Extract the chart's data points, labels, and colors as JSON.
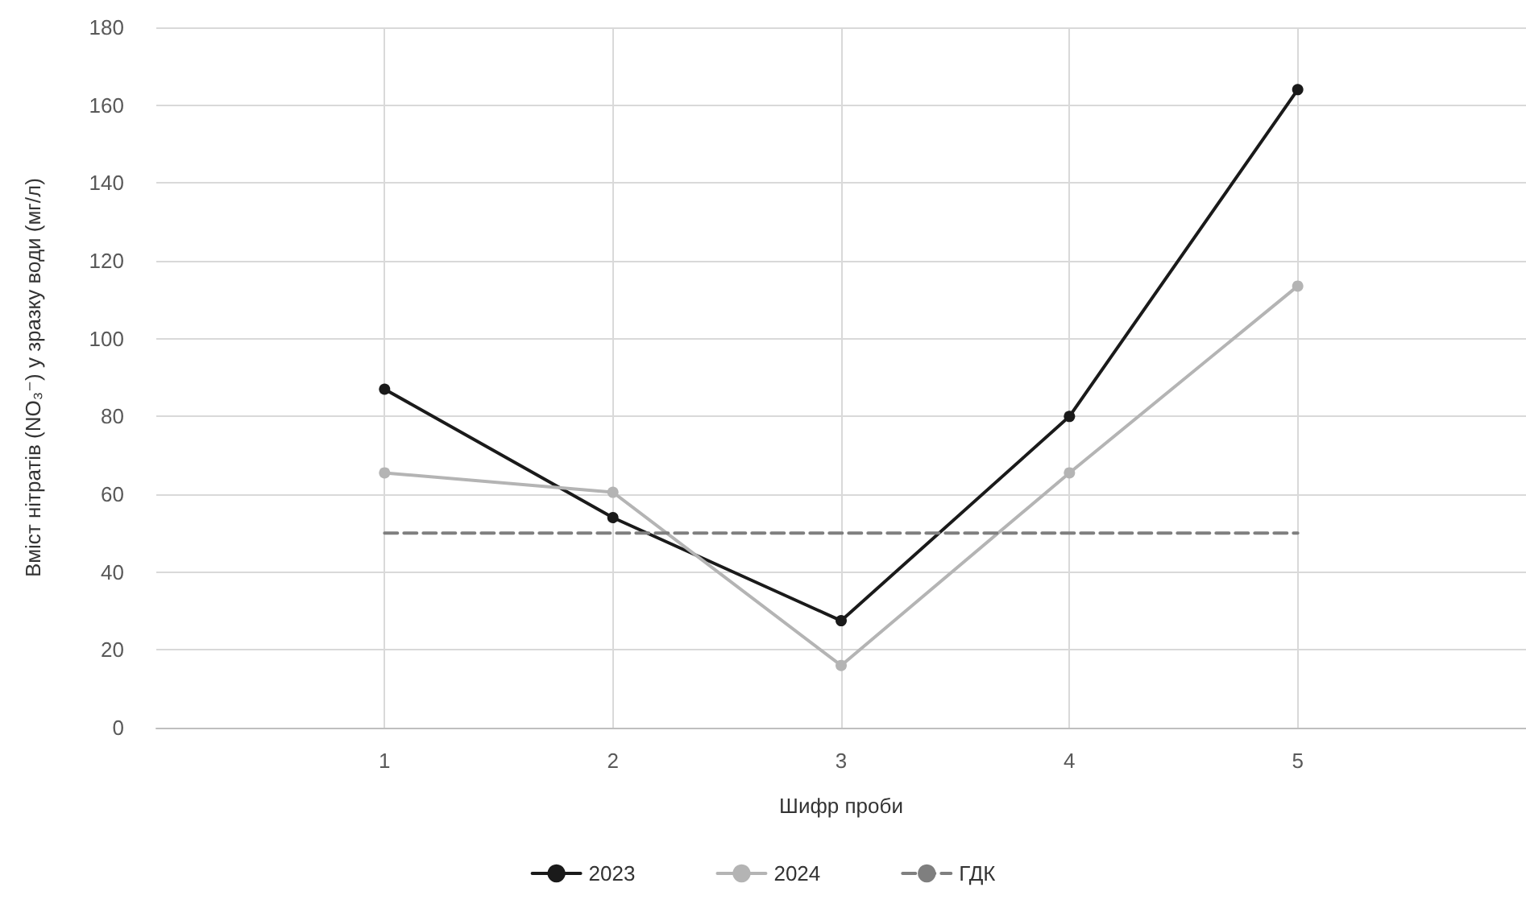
{
  "chart_data": {
    "type": "line",
    "xlabel": "Шифр проби",
    "ylabel": "Вміст нітратів (NO₃⁻) у зразку води (мг/л)",
    "x": [
      1,
      2,
      3,
      4,
      5
    ],
    "series": [
      {
        "name": "2023",
        "color": "#1a1a1a",
        "values": [
          87,
          54,
          27.5,
          80,
          164
        ],
        "marker": "circle",
        "line_style": "solid"
      },
      {
        "name": "2024",
        "color": "#b4b4b4",
        "values": [
          65.5,
          60.5,
          16,
          65.5,
          113.5
        ],
        "marker": "circle",
        "line_style": "solid"
      },
      {
        "name": "ГДК",
        "color": "#7f7f7f",
        "values": [
          50,
          50,
          50,
          50,
          50
        ],
        "marker": "none",
        "line_style": "dashed"
      }
    ],
    "xlim": [
      0,
      6
    ],
    "xticks": [
      1,
      2,
      3,
      4,
      5
    ],
    "ylim": [
      0,
      180
    ],
    "yticks": [
      0,
      20,
      40,
      60,
      80,
      100,
      120,
      140,
      160,
      180
    ],
    "grid": true,
    "legend": "bottom"
  }
}
